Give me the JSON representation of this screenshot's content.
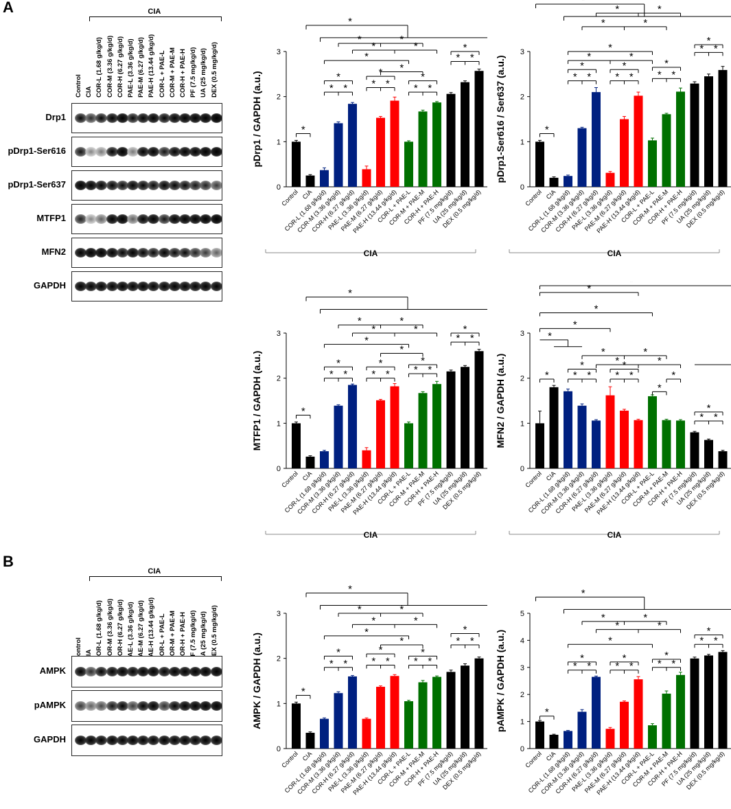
{
  "panel_labels": {
    "a": "A",
    "b": "B"
  },
  "lane_labels": [
    "Control",
    "CIA",
    "COR-L (1.68 g/kg/d)",
    "COR-M (3.36 g/kg/d)",
    "COR-H (6.27 g/kg/d)",
    "PAE-L (3.36 g/kg/d)",
    "PAE-M (6.27 g/kg/d)",
    "PAE-H (13.44 g/kg/d)",
    "COR-L + PAE-L",
    "COR-M + PAE-M",
    "COR-H + PAE-H",
    "PF (7.5 mg/kg/d)",
    "UA (25 mg/kg/d)",
    "DEX (0.5 mg/kg/d)"
  ],
  "x_tick_labels": [
    "Control",
    "CIA",
    "COR-L (1.68 g/kg/d)",
    "COR-M (3.36 g/kg/d)",
    "COR-H (6.27 g/kg/d)",
    "PAE-L (3.36 g/kg/d)",
    "PAE-M (6.27 g/kg/d)",
    "PAE-H (13.44 g/kg/d)",
    "COR-L + PAE-L",
    "COR-M + PAE-M",
    "COR-H + PAE-H",
    "PF (7.5 mg/kg/d)",
    "UA (25 mg/kg/d)",
    "DEX (0.5 mg/kg/d)"
  ],
  "cia_label": "CIA",
  "blots_a": [
    "Drp1",
    "pDrp1-Ser616",
    "pDrp1-Ser637",
    "MTFP1",
    "MFN2",
    "GAPDH"
  ],
  "blots_b": [
    "AMPK",
    "pAMPK",
    "GAPDH"
  ],
  "colors": {
    "black": "#000000",
    "blue": "#002080",
    "red": "#ff0000",
    "green": "#007000"
  },
  "bar_colors": [
    "black",
    "black",
    "blue",
    "blue",
    "blue",
    "red",
    "red",
    "red",
    "green",
    "green",
    "green",
    "black",
    "black",
    "black"
  ],
  "sig_symbol": "*",
  "chart_data": [
    {
      "id": "c1",
      "type": "bar",
      "ylabel": "pDrp1 / GAPDH (a.u.)",
      "ylim": [
        0,
        3
      ],
      "yticks": [
        "0",
        "1",
        "2",
        "3"
      ],
      "values": [
        1.0,
        0.25,
        0.37,
        1.41,
        1.84,
        0.39,
        1.53,
        1.91,
        1.0,
        1.67,
        1.87,
        2.06,
        2.32,
        2.57
      ],
      "errors": [
        0.03,
        0.02,
        0.05,
        0.03,
        0.03,
        0.07,
        0.03,
        0.08,
        0.02,
        0.03,
        0.02,
        0.03,
        0.03,
        0.04
      ]
    },
    {
      "id": "c2",
      "type": "bar",
      "ylabel": "pDrp1-Ser616 / Ser637 (a.u.)",
      "ylim": [
        0,
        3
      ],
      "yticks": [
        "0",
        "1",
        "2",
        "3"
      ],
      "values": [
        1.0,
        0.2,
        0.24,
        1.3,
        2.1,
        0.31,
        1.5,
        2.02,
        1.03,
        1.61,
        2.11,
        2.29,
        2.45,
        2.59
      ],
      "errors": [
        0.03,
        0.02,
        0.02,
        0.02,
        0.1,
        0.03,
        0.06,
        0.08,
        0.05,
        0.02,
        0.08,
        0.04,
        0.05,
        0.08
      ]
    },
    {
      "id": "c3",
      "type": "bar",
      "ylabel": "MTFP1 / GAPDH (a.u.)",
      "ylim": [
        0,
        3
      ],
      "yticks": [
        "0",
        "1",
        "2",
        "3"
      ],
      "values": [
        1.0,
        0.26,
        0.38,
        1.39,
        1.85,
        0.4,
        1.51,
        1.82,
        1.0,
        1.67,
        1.87,
        2.15,
        2.25,
        2.6
      ],
      "errors": [
        0.03,
        0.02,
        0.02,
        0.02,
        0.02,
        0.06,
        0.02,
        0.06,
        0.03,
        0.03,
        0.06,
        0.03,
        0.03,
        0.04
      ]
    },
    {
      "id": "c4",
      "type": "bar",
      "ylabel": "MFN2 / GAPDH (a.u.)",
      "ylim": [
        0,
        3
      ],
      "yticks": [
        "0",
        "1",
        "2",
        "3"
      ],
      "values": [
        1.0,
        1.8,
        1.71,
        1.39,
        1.06,
        1.62,
        1.28,
        1.07,
        1.6,
        1.07,
        1.06,
        0.8,
        0.63,
        0.38
      ],
      "errors": [
        0.27,
        0.04,
        0.05,
        0.04,
        0.02,
        0.19,
        0.03,
        0.02,
        0.03,
        0.02,
        0.02,
        0.02,
        0.02,
        0.02
      ]
    },
    {
      "id": "c5",
      "type": "bar",
      "ylabel": "AMPK / GAPDH (a.u.)",
      "ylim": [
        0,
        3
      ],
      "yticks": [
        "0",
        "1",
        "2",
        "3"
      ],
      "values": [
        1.0,
        0.35,
        0.66,
        1.23,
        1.6,
        0.66,
        1.37,
        1.61,
        1.05,
        1.47,
        1.59,
        1.7,
        1.84,
        2.0
      ],
      "errors": [
        0.03,
        0.02,
        0.02,
        0.03,
        0.02,
        0.02,
        0.02,
        0.03,
        0.02,
        0.04,
        0.02,
        0.04,
        0.04,
        0.03
      ]
    },
    {
      "id": "c6",
      "type": "bar",
      "ylabel": "pAMPK / GAPDH (a.u.)",
      "ylim": [
        0,
        5
      ],
      "yticks": [
        "0",
        "1",
        "2",
        "3",
        "4",
        "5"
      ],
      "values": [
        1.0,
        0.51,
        0.65,
        1.36,
        2.65,
        0.73,
        1.73,
        2.56,
        0.86,
        2.03,
        2.72,
        3.33,
        3.44,
        3.57
      ],
      "errors": [
        0.04,
        0.02,
        0.02,
        0.08,
        0.03,
        0.05,
        0.03,
        0.1,
        0.06,
        0.1,
        0.1,
        0.05,
        0.04,
        0.05
      ]
    }
  ]
}
